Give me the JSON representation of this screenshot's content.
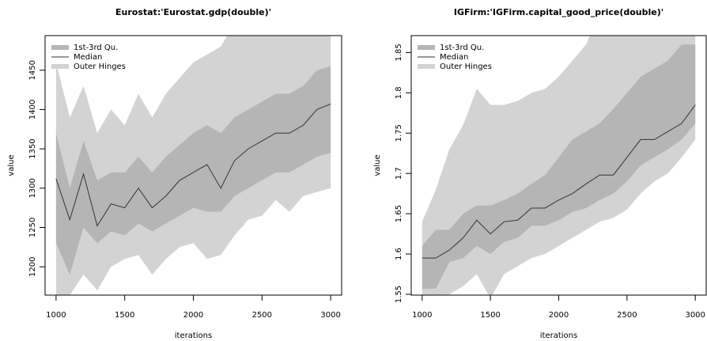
{
  "chart_data": [
    {
      "type": "band",
      "title": "Eurostat:'Eurostat.gdp(double)'",
      "x_label": "iterations",
      "y_label": "value",
      "x": [
        1000,
        1100,
        1200,
        1300,
        1400,
        1500,
        1600,
        1700,
        1800,
        1900,
        2000,
        2100,
        2200,
        2300,
        2400,
        2500,
        2600,
        2700,
        2800,
        2900,
        3000
      ],
      "series": [
        {
          "name": "1st-3rd Qu.",
          "color": "#b5b5b5",
          "lower": [
            1230,
            1190,
            1250,
            1230,
            1245,
            1240,
            1255,
            1245,
            1255,
            1265,
            1275,
            1270,
            1270,
            1290,
            1300,
            1310,
            1320,
            1320,
            1330,
            1340,
            1345
          ],
          "upper": [
            1370,
            1300,
            1360,
            1310,
            1320,
            1320,
            1340,
            1320,
            1340,
            1355,
            1370,
            1380,
            1370,
            1390,
            1400,
            1410,
            1420,
            1420,
            1430,
            1450,
            1455
          ]
        },
        {
          "name": "Median",
          "color": "#333333",
          "values": [
            1312,
            1260,
            1318,
            1252,
            1280,
            1275,
            1300,
            1275,
            1290,
            1310,
            1320,
            1330,
            1300,
            1335,
            1350,
            1360,
            1370,
            1370,
            1380,
            1400,
            1407
          ]
        },
        {
          "name": "Outer Hinges",
          "color": "#d3d3d3",
          "lower": [
            1164,
            1164,
            1190,
            1170,
            1200,
            1210,
            1215,
            1190,
            1210,
            1225,
            1230,
            1210,
            1215,
            1240,
            1260,
            1265,
            1285,
            1270,
            1290,
            1295,
            1300
          ],
          "upper": [
            1460,
            1390,
            1430,
            1370,
            1400,
            1380,
            1420,
            1390,
            1420,
            1440,
            1460,
            1470,
            1480,
            1510,
            1510,
            1510,
            1510,
            1510,
            1510,
            1510,
            1510
          ]
        }
      ],
      "xlim": [
        920,
        3080
      ],
      "xticks": [
        1000,
        1500,
        2000,
        2500,
        3000
      ],
      "ylim": [
        1164,
        1494
      ],
      "yticks": [
        1200,
        1250,
        1300,
        1350,
        1400,
        1450
      ],
      "legend": "topleft"
    },
    {
      "type": "band",
      "title": "IGFirm:'IGFirm.capital_good_price(double)'",
      "x_label": "iterations",
      "y_label": "value",
      "x": [
        1000,
        1100,
        1200,
        1300,
        1400,
        1500,
        1600,
        1700,
        1800,
        1900,
        2000,
        2100,
        2200,
        2300,
        2400,
        2500,
        2600,
        2700,
        2800,
        2900,
        3000
      ],
      "series": [
        {
          "name": "1st-3rd Qu.",
          "color": "#b5b5b5",
          "lower": [
            1.557,
            1.557,
            1.59,
            1.595,
            1.61,
            1.6,
            1.615,
            1.62,
            1.635,
            1.635,
            1.642,
            1.652,
            1.657,
            1.667,
            1.675,
            1.69,
            1.71,
            1.72,
            1.73,
            1.742,
            1.762
          ],
          "upper": [
            1.61,
            1.63,
            1.63,
            1.65,
            1.66,
            1.66,
            1.667,
            1.675,
            1.687,
            1.698,
            1.72,
            1.742,
            1.752,
            1.762,
            1.78,
            1.8,
            1.82,
            1.83,
            1.84,
            1.86,
            1.86
          ]
        },
        {
          "name": "Median",
          "color": "#333333",
          "values": [
            1.595,
            1.595,
            1.605,
            1.62,
            1.642,
            1.625,
            1.64,
            1.642,
            1.657,
            1.657,
            1.667,
            1.675,
            1.687,
            1.698,
            1.698,
            1.72,
            1.742,
            1.742,
            1.752,
            1.762,
            1.785
          ]
        },
        {
          "name": "Outer Hinges",
          "color": "#d3d3d3",
          "lower": [
            1.53,
            1.54,
            1.55,
            1.56,
            1.575,
            1.545,
            1.575,
            1.585,
            1.595,
            1.6,
            1.61,
            1.62,
            1.63,
            1.64,
            1.645,
            1.655,
            1.675,
            1.69,
            1.7,
            1.72,
            1.742
          ],
          "upper": [
            1.64,
            1.68,
            1.73,
            1.76,
            1.805,
            1.785,
            1.785,
            1.79,
            1.8,
            1.805,
            1.82,
            1.84,
            1.86,
            1.9,
            1.9,
            1.9,
            1.9,
            1.9,
            1.9,
            1.9,
            1.9
          ]
        }
      ],
      "xlim": [
        920,
        3080
      ],
      "xticks": [
        1000,
        1500,
        2000,
        2500,
        3000
      ],
      "ylim": [
        1.549,
        1.871
      ],
      "yticks": [
        1.55,
        1.6,
        1.65,
        1.7,
        1.75,
        1.8,
        1.85
      ],
      "legend": "topleft"
    }
  ]
}
